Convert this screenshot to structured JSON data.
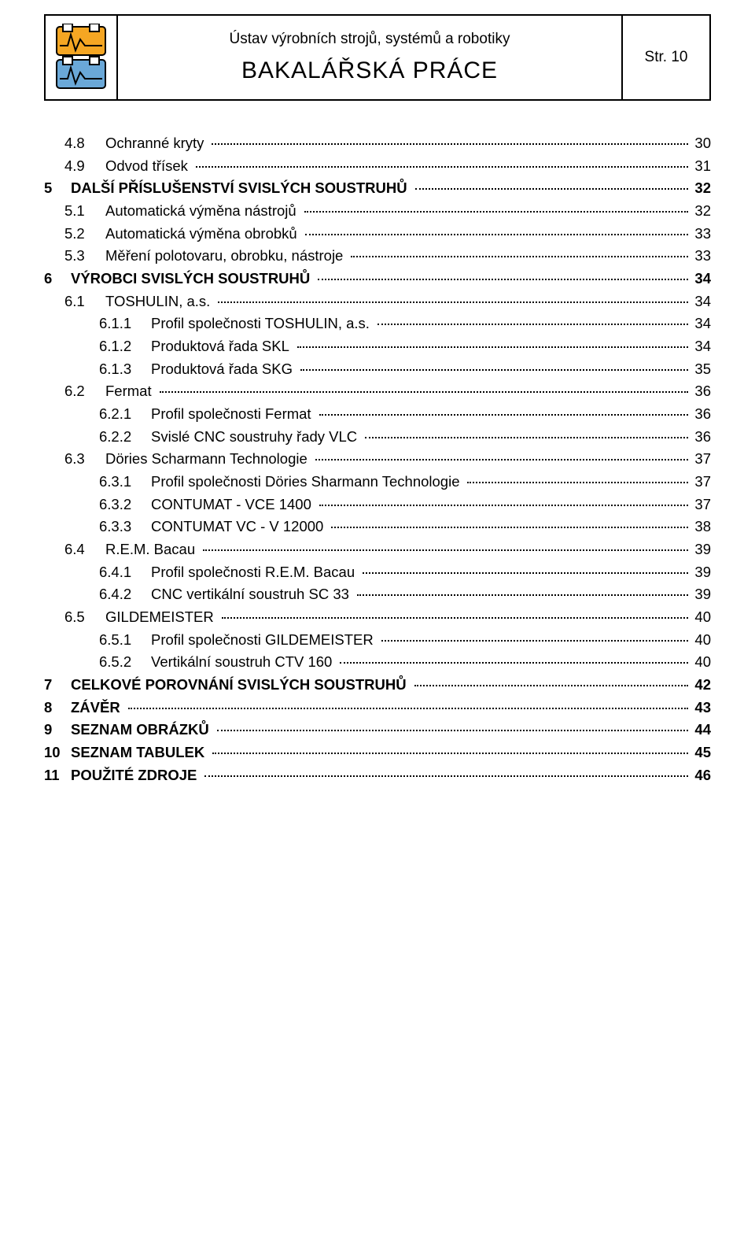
{
  "header": {
    "institute": "Ústav výrobních strojů, systémů a robotiky",
    "thesis_type": "BAKALÁŘSKÁ  PRÁCE",
    "page_label": "Str.  10"
  },
  "logo": {
    "colors": {
      "orange": "#f5a623",
      "blue": "#6aa8d8",
      "border": "#000000",
      "bg": "#ffffff"
    }
  },
  "toc": [
    {
      "level": 2,
      "num": "4.8",
      "label": "Ochranné kryty",
      "page": "30"
    },
    {
      "level": 2,
      "num": "4.9",
      "label": "Odvod třísek",
      "page": "31"
    },
    {
      "level": 1,
      "num": "5",
      "label": "DALŠÍ PŘÍSLUŠENSTVÍ SVISLÝCH SOUSTRUHŮ",
      "page": "32"
    },
    {
      "level": 2,
      "num": "5.1",
      "label": "Automatická výměna nástrojů",
      "page": "32"
    },
    {
      "level": 2,
      "num": "5.2",
      "label": "Automatická výměna obrobků",
      "page": "33"
    },
    {
      "level": 2,
      "num": "5.3",
      "label": "Měření polotovaru, obrobku, nástroje",
      "page": "33"
    },
    {
      "level": 1,
      "num": "6",
      "label": "VÝROBCI SVISLÝCH SOUSTRUHŮ",
      "page": "34"
    },
    {
      "level": 2,
      "num": "6.1",
      "label": "TOSHULIN, a.s.",
      "page": "34"
    },
    {
      "level": 3,
      "num": "6.1.1",
      "label": "Profil společnosti TOSHULIN, a.s.",
      "page": "34"
    },
    {
      "level": 3,
      "num": "6.1.2",
      "label": "Produktová řada SKL",
      "page": "34"
    },
    {
      "level": 3,
      "num": "6.1.3",
      "label": "Produktová řada SKG",
      "page": "35"
    },
    {
      "level": 2,
      "num": "6.2",
      "label": "Fermat",
      "page": "36"
    },
    {
      "level": 3,
      "num": "6.2.1",
      "label": "Profil společnosti Fermat",
      "page": "36"
    },
    {
      "level": 3,
      "num": "6.2.2",
      "label": "Svislé CNC soustruhy řady VLC",
      "page": "36"
    },
    {
      "level": 2,
      "num": "6.3",
      "label": "Döries Scharmann Technologie",
      "page": "37"
    },
    {
      "level": 3,
      "num": "6.3.1",
      "label": "Profil společnosti Döries Sharmann Technologie",
      "page": "37"
    },
    {
      "level": 3,
      "num": "6.3.2",
      "label": "CONTUMAT - VCE 1400",
      "page": "37"
    },
    {
      "level": 3,
      "num": "6.3.3",
      "label": "CONTUMAT VC - V 12000",
      "page": "38"
    },
    {
      "level": 2,
      "num": "6.4",
      "label": "R.E.M. Bacau",
      "page": "39"
    },
    {
      "level": 3,
      "num": "6.4.1",
      "label": "Profil společnosti R.E.M. Bacau",
      "page": "39"
    },
    {
      "level": 3,
      "num": "6.4.2",
      "label": "CNC vertikální soustruh SC 33",
      "page": "39"
    },
    {
      "level": 2,
      "num": "6.5",
      "label": "GILDEMEISTER",
      "page": "40"
    },
    {
      "level": 3,
      "num": "6.5.1",
      "label": "Profil společnosti GILDEMEISTER",
      "page": "40"
    },
    {
      "level": 3,
      "num": "6.5.2",
      "label": "Vertikální soustruh CTV 160",
      "page": "40"
    },
    {
      "level": 1,
      "num": "7",
      "label": "CELKOVÉ POROVNÁNÍ SVISLÝCH SOUSTRUHŮ",
      "page": "42"
    },
    {
      "level": 1,
      "num": "8",
      "label": "ZÁVĚR",
      "page": "43"
    },
    {
      "level": 1,
      "num": "9",
      "label": "SEZNAM OBRÁZKŮ",
      "page": "44"
    },
    {
      "level": 1,
      "num": "10",
      "label": "SEZNAM TABULEK",
      "page": "45"
    },
    {
      "level": 1,
      "num": "11",
      "label": "POUŽITÉ ZDROJE",
      "page": "46"
    }
  ]
}
